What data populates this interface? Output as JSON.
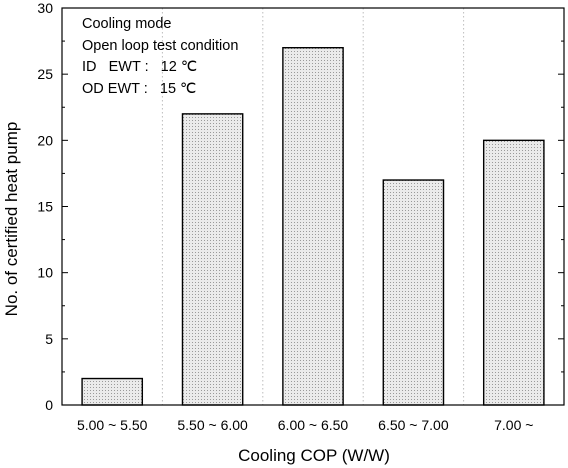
{
  "chart_data": {
    "type": "bar",
    "categories": [
      "5.00 ~ 5.50",
      "5.50 ~ 6.00",
      "6.00 ~ 6.50",
      "6.50 ~ 7.00",
      "7.00 ~"
    ],
    "values": [
      2,
      22,
      27,
      17,
      20
    ],
    "xlabel": "Cooling COP (W/W)",
    "ylabel": "No. of certified heat pump",
    "ylim": [
      0,
      30
    ],
    "yticks": [
      0,
      5,
      10,
      15,
      20,
      25,
      30
    ],
    "grid": "vertical dotted separators between categories",
    "bar_fill": "light gray dotted pattern",
    "annotations": [
      "Cooling mode",
      "Open loop test condition",
      "ID   EWT :   12 ℃",
      "OD EWT :   15 ℃"
    ]
  }
}
